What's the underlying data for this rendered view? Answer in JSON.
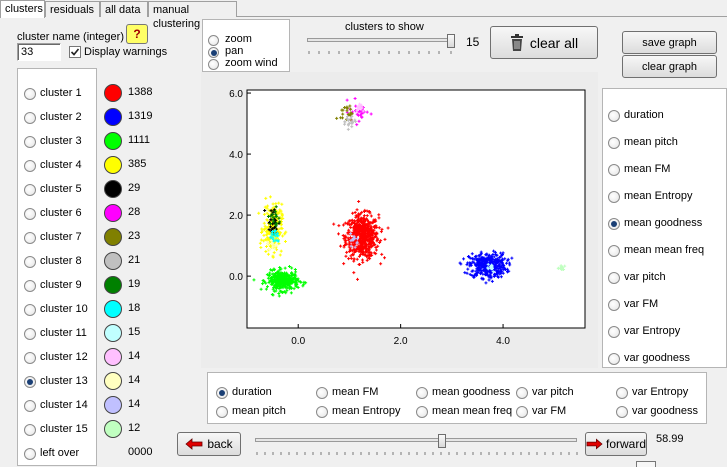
{
  "tabs": [
    {
      "label": "clusters",
      "active": true
    },
    {
      "label": "residuals",
      "active": false
    },
    {
      "label": "all data",
      "active": false
    },
    {
      "label": "manual clustering",
      "active": false
    }
  ],
  "cluster_name": {
    "label": "cluster name (integer)",
    "value": "33",
    "help": "?"
  },
  "display_warnings": {
    "label": "Display warnings",
    "checked": true
  },
  "view_mode": {
    "options": [
      {
        "label": "zoom",
        "selected": false
      },
      {
        "label": "pan",
        "selected": true
      },
      {
        "label": "zoom wind",
        "selected": false
      }
    ]
  },
  "clusters_to_show": {
    "label": "clusters to show",
    "value": "15",
    "fraction": 1.0
  },
  "clear_all_label": "clear all",
  "save_graph_label": "save graph",
  "clear_graph_label": "clear graph",
  "clusters": [
    {
      "label": "cluster 1",
      "color": "#ff0000",
      "count": "1388",
      "selected": false
    },
    {
      "label": "cluster 2",
      "color": "#0000ff",
      "count": "1319",
      "selected": false
    },
    {
      "label": "cluster 3",
      "color": "#00ff00",
      "count": "1111",
      "selected": false
    },
    {
      "label": "cluster 4",
      "color": "#ffff00",
      "count": "385",
      "selected": false
    },
    {
      "label": "cluster 5",
      "color": "#000000",
      "count": "29",
      "selected": false
    },
    {
      "label": "cluster 6",
      "color": "#ff00ff",
      "count": "28",
      "selected": false
    },
    {
      "label": "cluster 7",
      "color": "#808000",
      "count": "23",
      "selected": false
    },
    {
      "label": "cluster 8",
      "color": "#c0c0c0",
      "count": "21",
      "selected": false
    },
    {
      "label": "cluster 9",
      "color": "#008000",
      "count": "19",
      "selected": false
    },
    {
      "label": "cluster 10",
      "color": "#00ffff",
      "count": "18",
      "selected": false
    },
    {
      "label": "cluster 11",
      "color": "#c0ffff",
      "count": "15",
      "selected": false
    },
    {
      "label": "cluster 12",
      "color": "#ffc0ff",
      "count": "14",
      "selected": false
    },
    {
      "label": "cluster 13",
      "color": "#ffffc0",
      "count": "14",
      "selected": true
    },
    {
      "label": "cluster 14",
      "color": "#c0c0ff",
      "count": "14",
      "selected": false
    },
    {
      "label": "cluster 15",
      "color": "#c0ffc0",
      "count": "12",
      "selected": false
    },
    {
      "label": "left over",
      "color": null,
      "count": "0000",
      "selected": false
    }
  ],
  "y_features": [
    {
      "label": "duration",
      "selected": false
    },
    {
      "label": "mean pitch",
      "selected": false
    },
    {
      "label": "mean FM",
      "selected": false
    },
    {
      "label": "mean Entropy",
      "selected": false
    },
    {
      "label": "mean goodness",
      "selected": true
    },
    {
      "label": "mean mean freq",
      "selected": false
    },
    {
      "label": "var pitch",
      "selected": false
    },
    {
      "label": "var FM",
      "selected": false
    },
    {
      "label": "var Entropy",
      "selected": false
    },
    {
      "label": "var goodness",
      "selected": false
    }
  ],
  "x_features": [
    {
      "label": "duration",
      "selected": true
    },
    {
      "label": "mean FM",
      "selected": false
    },
    {
      "label": "mean goodness",
      "selected": false
    },
    {
      "label": "var pitch",
      "selected": false
    },
    {
      "label": "var Entropy",
      "selected": false
    },
    {
      "label": "mean pitch",
      "selected": false
    },
    {
      "label": "mean Entropy",
      "selected": false
    },
    {
      "label": "mean mean freq",
      "selected": false
    },
    {
      "label": "var FM",
      "selected": false
    },
    {
      "label": "var goodness",
      "selected": false
    }
  ],
  "navigation": {
    "back_label": "back",
    "forward_label": "forward",
    "value": "58.99",
    "fraction": 0.58
  },
  "chart_data": {
    "type": "scatter",
    "xlim": [
      -1.0,
      5.6
    ],
    "ylim": [
      -1.7,
      6.1
    ],
    "x_ticks": [
      "0.0",
      "2.0",
      "4.0"
    ],
    "x_tick_values": [
      0,
      2,
      4
    ],
    "y_ticks": [
      "6.0",
      "4.0",
      "2.0",
      "0.0"
    ],
    "y_tick_values": [
      6,
      4,
      2,
      0
    ],
    "grid": false,
    "clusters": [
      {
        "color": "#ff0000",
        "cx": 1.25,
        "cy": 1.3,
        "sx": 0.16,
        "sy": 0.35,
        "n": 600
      },
      {
        "color": "#0000ff",
        "cx": 3.7,
        "cy": 0.35,
        "sx": 0.18,
        "sy": 0.2,
        "n": 400
      },
      {
        "color": "#00ff00",
        "cx": -0.3,
        "cy": -0.15,
        "sx": 0.15,
        "sy": 0.16,
        "n": 350
      },
      {
        "color": "#ffff00",
        "cx": -0.5,
        "cy": 1.55,
        "sx": 0.09,
        "sy": 0.4,
        "n": 220
      },
      {
        "color": "#000000",
        "cx": -0.5,
        "cy": 1.75,
        "sx": 0.06,
        "sy": 0.25,
        "n": 29
      },
      {
        "color": "#ff00ff",
        "cx": 1.2,
        "cy": 5.4,
        "sx": 0.1,
        "sy": 0.2,
        "n": 28
      },
      {
        "color": "#808000",
        "cx": 0.95,
        "cy": 5.35,
        "sx": 0.06,
        "sy": 0.12,
        "n": 23
      },
      {
        "color": "#c0c0c0",
        "cx": 1.0,
        "cy": 5.1,
        "sx": 0.06,
        "sy": 0.12,
        "n": 21
      },
      {
        "color": "#008000",
        "cx": -0.45,
        "cy": 1.85,
        "sx": 0.05,
        "sy": 0.2,
        "n": 19
      },
      {
        "color": "#00ffff",
        "cx": -0.45,
        "cy": 1.3,
        "sx": 0.05,
        "sy": 0.15,
        "n": 18
      },
      {
        "color": "#c0ffff",
        "cx": 3.75,
        "cy": 0.3,
        "sx": 0.05,
        "sy": 0.08,
        "n": 15
      },
      {
        "color": "#ffc0ff",
        "cx": 1.2,
        "cy": 5.55,
        "sx": 0.05,
        "sy": 0.08,
        "n": 14
      },
      {
        "color": "#ffffc0",
        "cx": -0.5,
        "cy": 1.0,
        "sx": 0.05,
        "sy": 0.1,
        "n": 14
      },
      {
        "color": "#c0c0ff",
        "cx": 1.1,
        "cy": 1.2,
        "sx": 0.04,
        "sy": 0.1,
        "n": 14
      },
      {
        "color": "#c0ffc0",
        "cx": 5.15,
        "cy": 0.25,
        "sx": 0.05,
        "sy": 0.06,
        "n": 12
      }
    ]
  }
}
